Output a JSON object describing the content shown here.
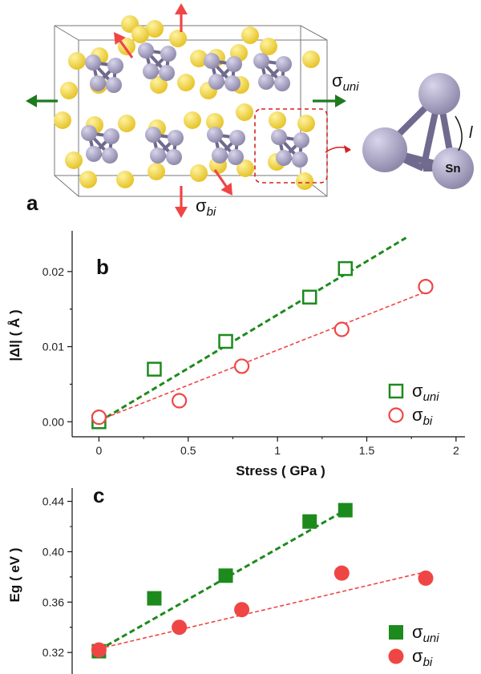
{
  "figure": {
    "panel_a": {
      "label": "a",
      "sigma_uni": {
        "symbol": "σ",
        "sub": "uni"
      },
      "sigma_bi": {
        "symbol": "σ",
        "sub": "bi"
      },
      "bond_label": "l",
      "atom_label": "Sn",
      "colors": {
        "sn_atom": "#8f8aab",
        "s_atom": "#e6c42a",
        "uniaxial_arrow": "#1d7a1d",
        "biaxial_arrow": "#f04545",
        "highlight_box": "#d82020"
      }
    }
  },
  "chart_data": [
    {
      "type": "scatter",
      "panel_label": "b",
      "xlabel": "Stress ( GPa )",
      "ylabel": "|Δl| ( Å )",
      "xlim": [
        -0.15,
        2.05
      ],
      "ylim": [
        -0.002,
        0.025
      ],
      "x_ticks": [
        "0",
        "0.5",
        "1",
        "1.5",
        "2"
      ],
      "y_ticks": [
        "0.00",
        "0.01",
        "0.02"
      ],
      "grid": false,
      "legend_position": "bottom-right",
      "series": [
        {
          "name": "σuni",
          "label": {
            "symbol": "σ",
            "sub": "uni"
          },
          "marker": "open-square",
          "color": "#1d8a1d",
          "x": [
            0.0,
            0.31,
            0.71,
            1.18,
            1.38
          ],
          "y": [
            0.0,
            0.007,
            0.0107,
            0.0166,
            0.0204
          ],
          "fit": {
            "x": [
              0.0,
              1.72
            ],
            "y": [
              0.0,
              0.0245
            ],
            "style": "dashed"
          }
        },
        {
          "name": "σbi",
          "label": {
            "symbol": "σ",
            "sub": "bi"
          },
          "marker": "open-circle",
          "color": "#f04545",
          "x": [
            0.0,
            0.45,
            0.8,
            1.36,
            1.83
          ],
          "y": [
            0.0006,
            0.0028,
            0.0074,
            0.0123,
            0.018
          ],
          "fit": {
            "x": [
              0.0,
              1.83
            ],
            "y": [
              0.0002,
              0.0173
            ],
            "style": "dashed"
          }
        }
      ]
    },
    {
      "type": "scatter",
      "panel_label": "c",
      "xlabel": "",
      "ylabel": "Eg ( eV )",
      "xlim": [
        -0.15,
        2.05
      ],
      "ylim": [
        0.315,
        0.448
      ],
      "y_ticks": [
        "0.32",
        "0.36",
        "0.40",
        "0.44"
      ],
      "grid": false,
      "legend_position": "bottom-right",
      "series": [
        {
          "name": "σuni",
          "label": {
            "symbol": "σ",
            "sub": "uni"
          },
          "marker": "filled-square",
          "color": "#1d8a1d",
          "x": [
            0.0,
            0.31,
            0.71,
            1.18,
            1.38
          ],
          "y": [
            0.321,
            0.363,
            0.381,
            0.424,
            0.433
          ],
          "fit": {
            "x": [
              0.0,
              1.38
            ],
            "y": [
              0.322,
              0.433
            ],
            "style": "dashed"
          }
        },
        {
          "name": "σbi",
          "label": {
            "symbol": "σ",
            "sub": "bi"
          },
          "marker": "filled-circle",
          "color": "#f04545",
          "x": [
            0.0,
            0.45,
            0.8,
            1.36,
            1.83
          ],
          "y": [
            0.322,
            0.34,
            0.354,
            0.383,
            0.379
          ],
          "fit": {
            "x": [
              0.0,
              1.83
            ],
            "y": [
              0.323,
              0.384
            ],
            "style": "dashed"
          }
        }
      ]
    }
  ]
}
